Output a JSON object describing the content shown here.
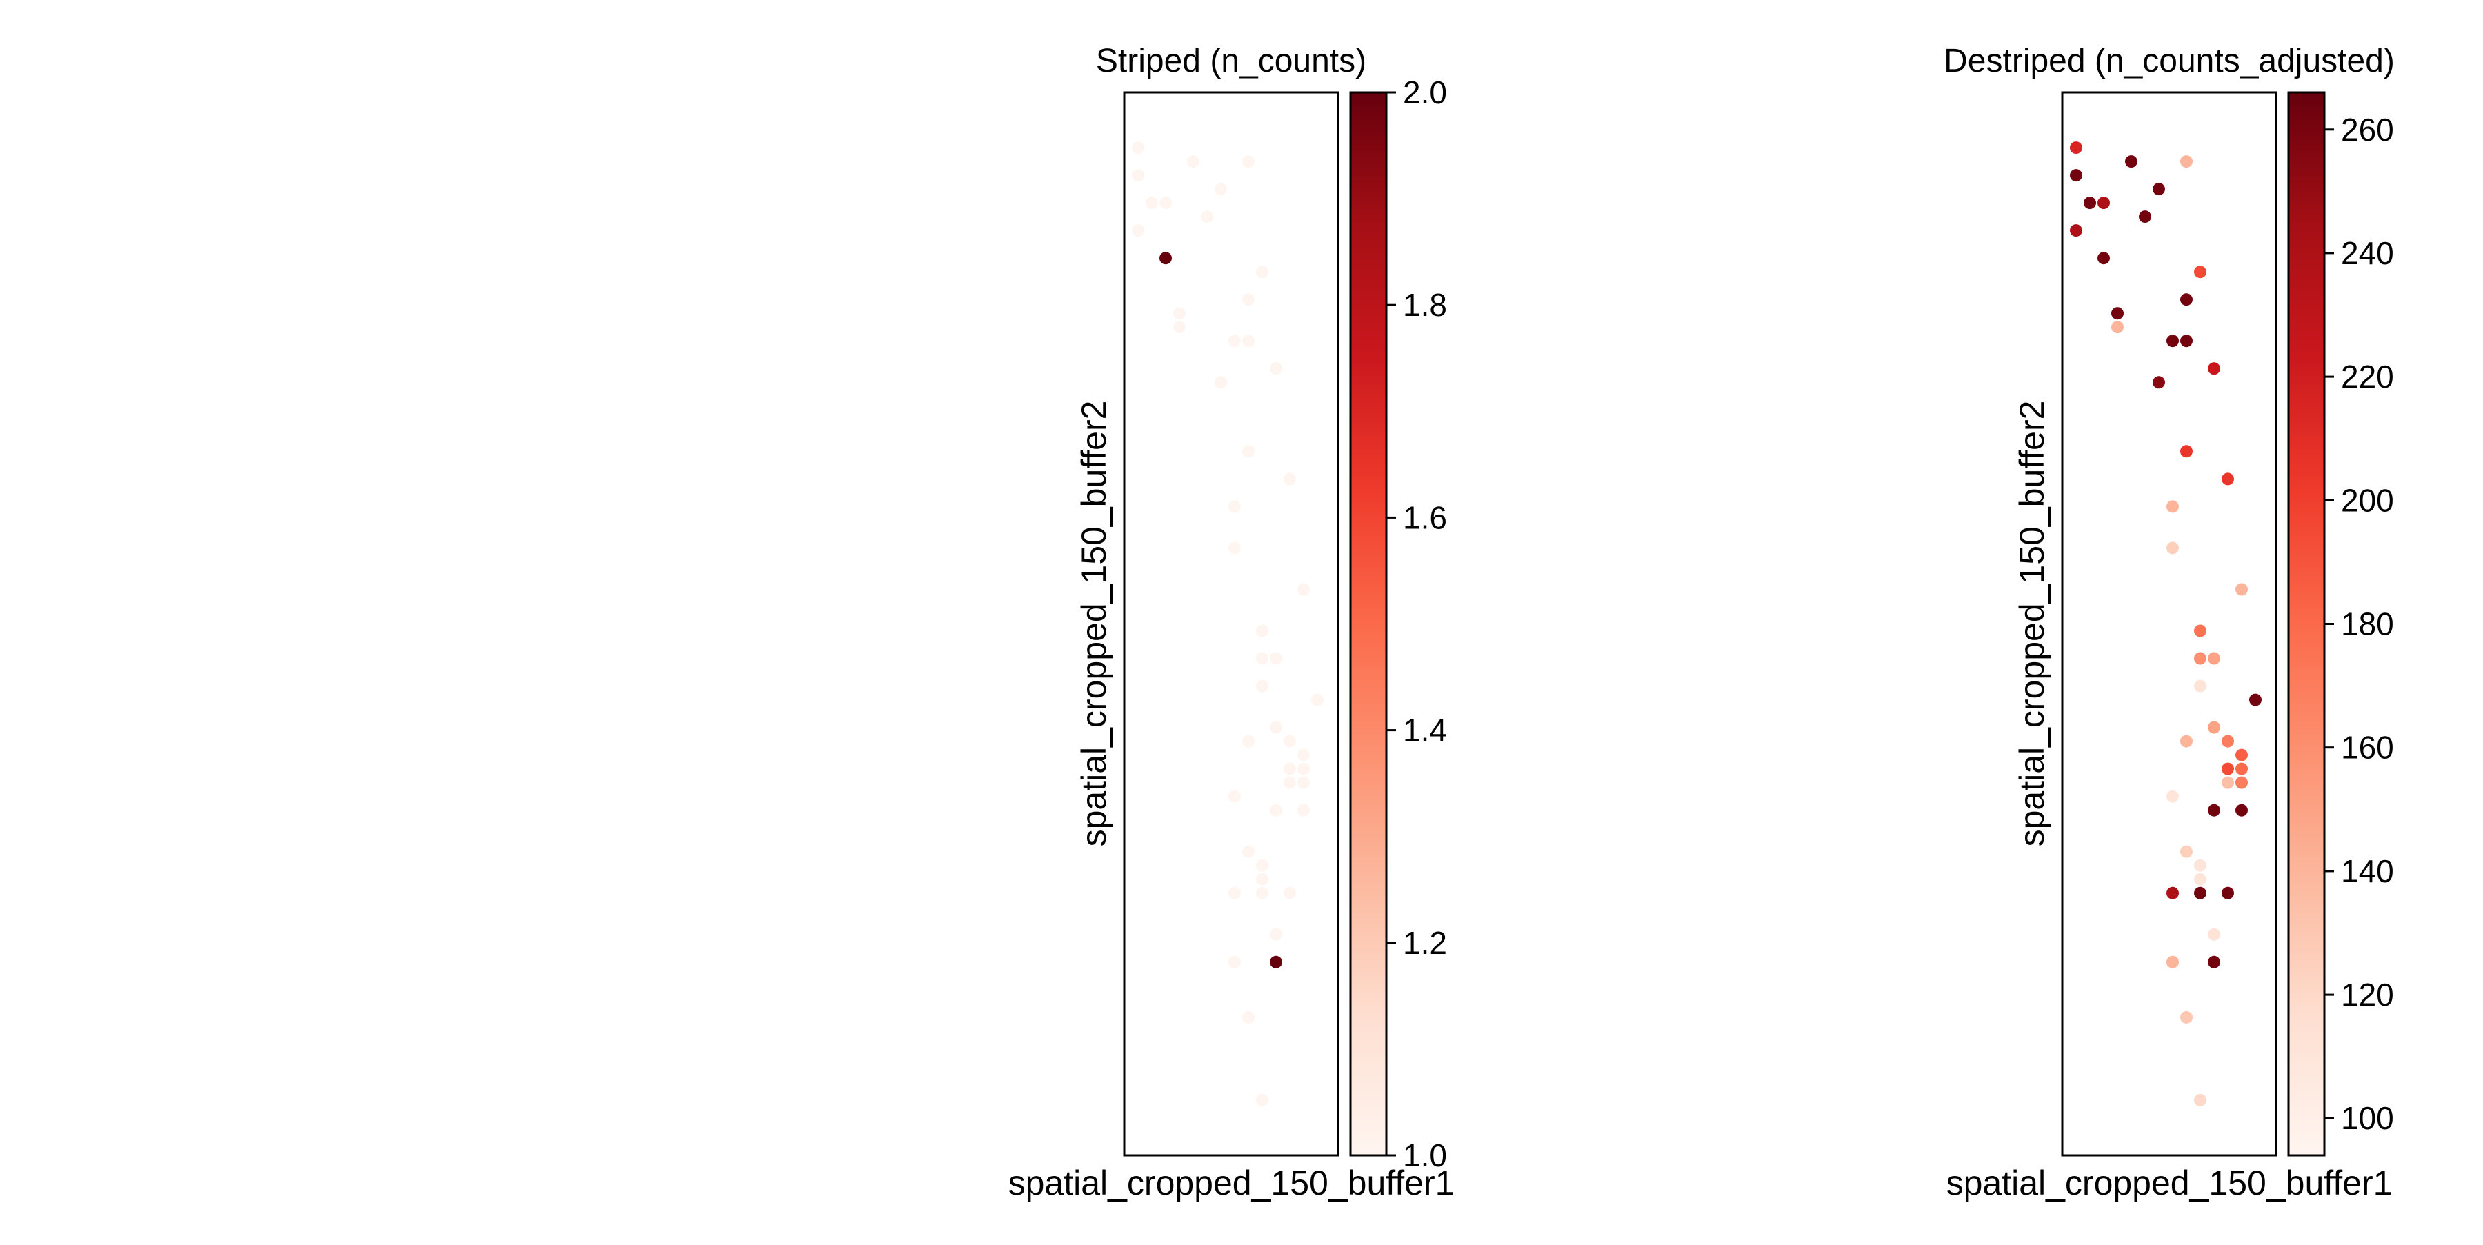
{
  "chart_data": [
    {
      "type": "scatter",
      "title": "Striped (n_counts)",
      "xlabel": "spatial_cropped_150_buffer1",
      "ylabel": "spatial_cropped_150_buffer2",
      "xlim": [
        0,
        15.5
      ],
      "ylim": [
        0,
        77
      ],
      "grid": false,
      "colormap": "Reds",
      "colorbar": {
        "min": 1.0,
        "max": 2.0,
        "ticks": [
          "1.0",
          "1.2",
          "1.4",
          "1.6",
          "1.8",
          "2.0"
        ]
      },
      "points": [
        {
          "x": 1,
          "y": 73,
          "v": 1
        },
        {
          "x": 1,
          "y": 71,
          "v": 1
        },
        {
          "x": 1,
          "y": 67,
          "v": 1
        },
        {
          "x": 2,
          "y": 69,
          "v": 1
        },
        {
          "x": 3,
          "y": 69,
          "v": 1
        },
        {
          "x": 5,
          "y": 72,
          "v": 1
        },
        {
          "x": 7,
          "y": 70,
          "v": 1
        },
        {
          "x": 6,
          "y": 68,
          "v": 1
        },
        {
          "x": 9,
          "y": 72,
          "v": 1
        },
        {
          "x": 3,
          "y": 65,
          "v": 2
        },
        {
          "x": 4,
          "y": 61,
          "v": 1
        },
        {
          "x": 4,
          "y": 60,
          "v": 1
        },
        {
          "x": 10,
          "y": 64,
          "v": 1
        },
        {
          "x": 9,
          "y": 62,
          "v": 1
        },
        {
          "x": 8,
          "y": 59,
          "v": 1
        },
        {
          "x": 9,
          "y": 59,
          "v": 1
        },
        {
          "x": 11,
          "y": 57,
          "v": 1
        },
        {
          "x": 7,
          "y": 56,
          "v": 1
        },
        {
          "x": 9,
          "y": 51,
          "v": 1
        },
        {
          "x": 12,
          "y": 49,
          "v": 1
        },
        {
          "x": 8,
          "y": 47,
          "v": 1
        },
        {
          "x": 8,
          "y": 44,
          "v": 1
        },
        {
          "x": 13,
          "y": 41,
          "v": 1
        },
        {
          "x": 10,
          "y": 38,
          "v": 1
        },
        {
          "x": 10,
          "y": 36,
          "v": 1
        },
        {
          "x": 11,
          "y": 36,
          "v": 1
        },
        {
          "x": 10,
          "y": 34,
          "v": 1
        },
        {
          "x": 14,
          "y": 33,
          "v": 1
        },
        {
          "x": 9,
          "y": 30,
          "v": 1
        },
        {
          "x": 11,
          "y": 31,
          "v": 1
        },
        {
          "x": 12,
          "y": 30,
          "v": 1
        },
        {
          "x": 13,
          "y": 29,
          "v": 1
        },
        {
          "x": 12,
          "y": 28,
          "v": 1
        },
        {
          "x": 13,
          "y": 28,
          "v": 1
        },
        {
          "x": 12,
          "y": 27,
          "v": 1
        },
        {
          "x": 13,
          "y": 27,
          "v": 1
        },
        {
          "x": 8,
          "y": 26,
          "v": 1
        },
        {
          "x": 11,
          "y": 25,
          "v": 1
        },
        {
          "x": 13,
          "y": 25,
          "v": 1
        },
        {
          "x": 9,
          "y": 22,
          "v": 1
        },
        {
          "x": 10,
          "y": 21,
          "v": 1
        },
        {
          "x": 10,
          "y": 20,
          "v": 1
        },
        {
          "x": 8,
          "y": 19,
          "v": 1
        },
        {
          "x": 10,
          "y": 19,
          "v": 1
        },
        {
          "x": 12,
          "y": 19,
          "v": 1
        },
        {
          "x": 11,
          "y": 16,
          "v": 1
        },
        {
          "x": 8,
          "y": 14,
          "v": 1
        },
        {
          "x": 11,
          "y": 14,
          "v": 2
        },
        {
          "x": 9,
          "y": 10,
          "v": 1
        },
        {
          "x": 10,
          "y": 4,
          "v": 1
        }
      ]
    },
    {
      "type": "scatter",
      "title": "Destriped (n_counts_adjusted)",
      "xlabel": "spatial_cropped_150_buffer1",
      "ylabel": "spatial_cropped_150_buffer2",
      "xlim": [
        0,
        15.5
      ],
      "ylim": [
        0,
        77
      ],
      "grid": false,
      "colormap": "Reds",
      "colorbar": {
        "min": 94,
        "max": 266,
        "ticks": [
          "100",
          "120",
          "140",
          "160",
          "180",
          "200",
          "220",
          "240",
          "260"
        ]
      },
      "points": [
        {
          "x": 1,
          "y": 73,
          "v": 215
        },
        {
          "x": 1,
          "y": 71,
          "v": 262
        },
        {
          "x": 2,
          "y": 69,
          "v": 262
        },
        {
          "x": 3,
          "y": 69,
          "v": 240
        },
        {
          "x": 5,
          "y": 72,
          "v": 262
        },
        {
          "x": 7,
          "y": 70,
          "v": 262
        },
        {
          "x": 6,
          "y": 68,
          "v": 262
        },
        {
          "x": 9,
          "y": 72,
          "v": 140
        },
        {
          "x": 1,
          "y": 67,
          "v": 240
        },
        {
          "x": 3,
          "y": 65,
          "v": 262
        },
        {
          "x": 4,
          "y": 61,
          "v": 262
        },
        {
          "x": 4,
          "y": 60,
          "v": 140
        },
        {
          "x": 10,
          "y": 64,
          "v": 195
        },
        {
          "x": 9,
          "y": 62,
          "v": 262
        },
        {
          "x": 8,
          "y": 59,
          "v": 262
        },
        {
          "x": 9,
          "y": 59,
          "v": 262
        },
        {
          "x": 11,
          "y": 57,
          "v": 225
        },
        {
          "x": 7,
          "y": 56,
          "v": 255
        },
        {
          "x": 9,
          "y": 51,
          "v": 205
        },
        {
          "x": 12,
          "y": 49,
          "v": 205
        },
        {
          "x": 8,
          "y": 47,
          "v": 140
        },
        {
          "x": 8,
          "y": 44,
          "v": 125
        },
        {
          "x": 13,
          "y": 41,
          "v": 140
        },
        {
          "x": 10,
          "y": 38,
          "v": 175
        },
        {
          "x": 10,
          "y": 36,
          "v": 160
        },
        {
          "x": 11,
          "y": 36,
          "v": 150
        },
        {
          "x": 10,
          "y": 34,
          "v": 112
        },
        {
          "x": 14,
          "y": 33,
          "v": 262
        },
        {
          "x": 9,
          "y": 30,
          "v": 140
        },
        {
          "x": 11,
          "y": 31,
          "v": 150
        },
        {
          "x": 12,
          "y": 30,
          "v": 170
        },
        {
          "x": 13,
          "y": 29,
          "v": 185
        },
        {
          "x": 12,
          "y": 28,
          "v": 195
        },
        {
          "x": 13,
          "y": 28,
          "v": 180
        },
        {
          "x": 12,
          "y": 27,
          "v": 135
        },
        {
          "x": 13,
          "y": 27,
          "v": 170
        },
        {
          "x": 8,
          "y": 26,
          "v": 110
        },
        {
          "x": 11,
          "y": 25,
          "v": 262
        },
        {
          "x": 13,
          "y": 25,
          "v": 262
        },
        {
          "x": 9,
          "y": 22,
          "v": 125
        },
        {
          "x": 10,
          "y": 21,
          "v": 110
        },
        {
          "x": 10,
          "y": 20,
          "v": 110
        },
        {
          "x": 8,
          "y": 19,
          "v": 240
        },
        {
          "x": 10,
          "y": 19,
          "v": 262
        },
        {
          "x": 12,
          "y": 19,
          "v": 262
        },
        {
          "x": 11,
          "y": 16,
          "v": 112
        },
        {
          "x": 8,
          "y": 14,
          "v": 140
        },
        {
          "x": 11,
          "y": 14,
          "v": 262
        },
        {
          "x": 9,
          "y": 10,
          "v": 130
        },
        {
          "x": 10,
          "y": 4,
          "v": 120
        }
      ]
    }
  ]
}
